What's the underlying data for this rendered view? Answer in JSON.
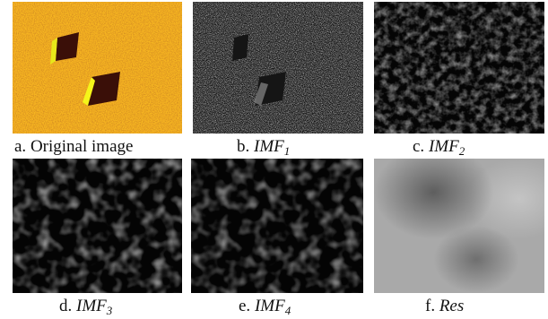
{
  "panels": [
    {
      "letter": "a.",
      "label": "Original image",
      "sub": ""
    },
    {
      "letter": "b.",
      "label": "IMF",
      "sub": "1"
    },
    {
      "letter": "c.",
      "label": "IMF",
      "sub": "2"
    },
    {
      "letter": "d.",
      "label": "IMF",
      "sub": "3"
    },
    {
      "letter": "e.",
      "label": "IMF",
      "sub": "4"
    },
    {
      "letter": "f.",
      "label": "Res",
      "sub": ""
    }
  ],
  "colors": {
    "original_base": "#d98a10",
    "original_speckle": "#f2c21a",
    "original_shadow": "#3a0f08",
    "original_edge": "#f5f51a",
    "imf_background": "#050505",
    "imf_feature": "#6a6a6a",
    "res_light": "#b8b8b8",
    "res_dark": "#6b6b6b"
  }
}
